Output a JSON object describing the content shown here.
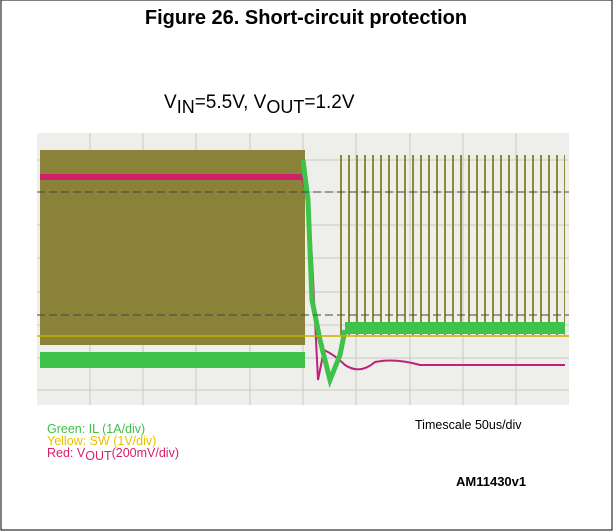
{
  "figure": {
    "title": "Figure 26. Short-circuit protection",
    "condition": {
      "v1": "V",
      "v1_sub": "IN",
      "mid": "=5.5V, V",
      "v2_sub": "OUT",
      "end": "=1.2V"
    },
    "legend": {
      "green": "Green: IL (1A/div)",
      "yellow": "Yellow: SW (1V/div)",
      "red": {
        "prefix": "Red: V",
        "sub": "OUT",
        "suffix": "(200mV/div)"
      }
    },
    "timescale": "Timescale 50us/div",
    "code": "AM11430v1"
  }
}
